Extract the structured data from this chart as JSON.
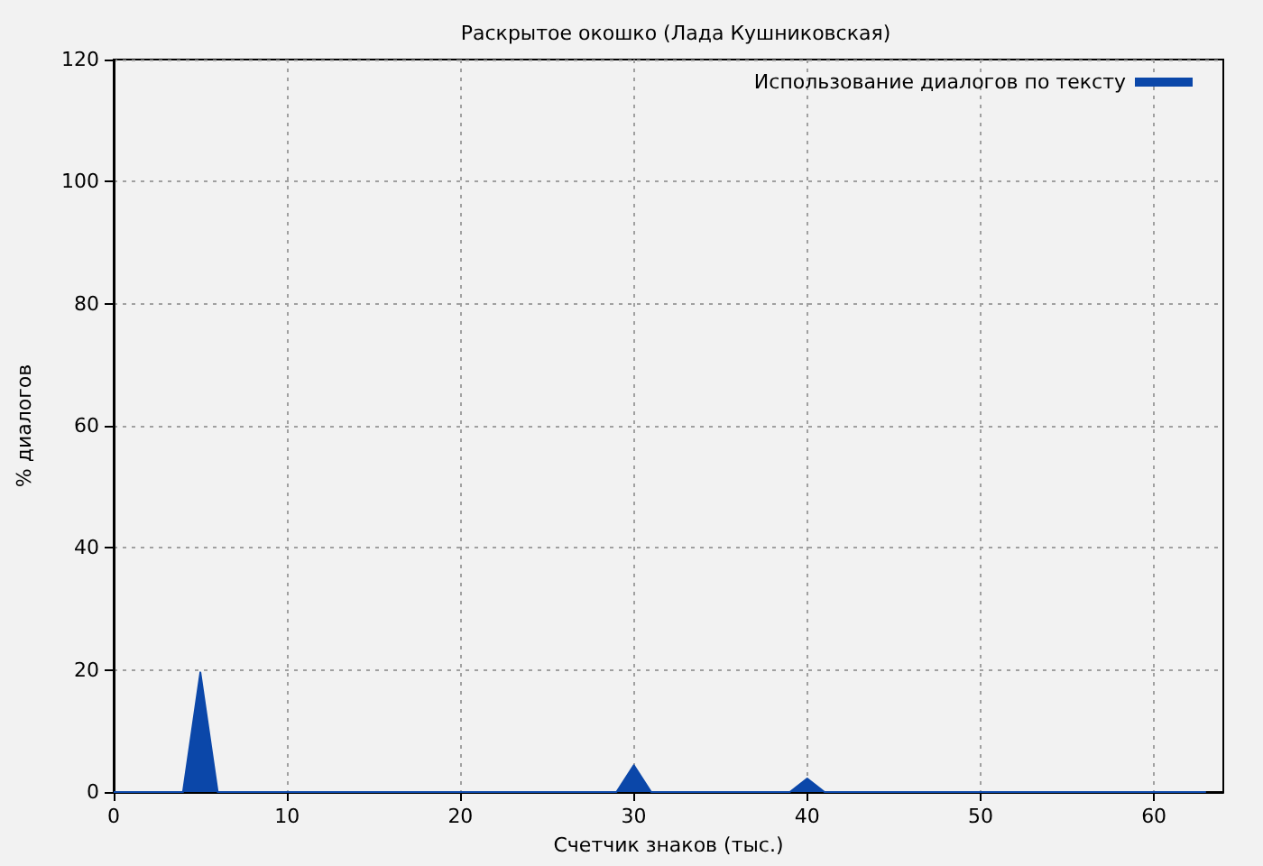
{
  "chart_data": {
    "type": "area",
    "title": "Раскрытое окошко (Лада Кушниковская)",
    "xlabel": "Счетчик знаков (тыс.)",
    "ylabel": "% диалогов",
    "x": [
      0,
      4,
      5,
      6,
      29,
      30,
      31,
      39,
      40,
      41,
      63
    ],
    "series": [
      {
        "name": "Использование диалогов по тексту",
        "color": "#0b47a9",
        "values": [
          0,
          0,
          19.6,
          0,
          0,
          4.4,
          0,
          0,
          2.2,
          0,
          0
        ]
      }
    ],
    "xlim": [
      0,
      64
    ],
    "ylim": [
      0,
      120
    ],
    "xticks": [
      0,
      10,
      20,
      30,
      40,
      50,
      60
    ],
    "yticks": [
      0,
      20,
      40,
      60,
      80,
      100,
      120
    ],
    "grid": true,
    "legend": "top right"
  }
}
